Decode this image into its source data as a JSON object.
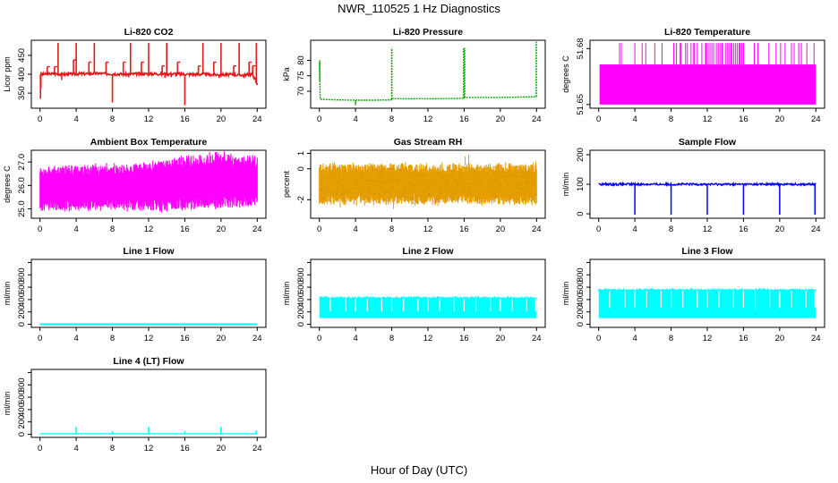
{
  "page": {
    "title": "NWR_110525  1 Hz Diagnostics",
    "xlabel": "Hour of Day (UTC)"
  },
  "chart_data": [
    {
      "type": "line",
      "title": "Li-820 CO2",
      "ylabel": "Licor ppm",
      "xlim": [
        0,
        24
      ],
      "ylim": [
        310,
        490
      ],
      "xticks": [
        "0",
        "4",
        "8",
        "12",
        "16",
        "20",
        "24"
      ],
      "yticks": [
        {
          "v": 350,
          "l": "350"
        },
        {
          "v": 400,
          "l": "400"
        },
        {
          "v": 450,
          "l": "450"
        }
      ],
      "color": "#e41a1c",
      "series": [
        {
          "x": [
            0,
            0.3,
            0.6,
            1.2,
            2.0,
            2.7,
            4.0,
            5.3,
            6.0,
            6.7,
            8.0,
            9.3,
            10.0,
            10.7,
            12.0,
            13.3,
            14.0,
            14.7,
            16.0,
            17.3,
            18.0,
            18.7,
            20.0,
            21.3,
            22.0,
            22.7,
            23.5,
            24.0
          ],
          "y": [
            399,
            400,
            400,
            401,
            401,
            400,
            401,
            401,
            402,
            402,
            401,
            400,
            400,
            401,
            401,
            401,
            401,
            401,
            400,
            400,
            400,
            399,
            399,
            399,
            398,
            398,
            400,
            372
          ]
        }
      ],
      "spikes": [
        {
          "x": 0.05,
          "y": 335
        },
        {
          "x": 0.1,
          "y": 362
        },
        {
          "x": 0.8,
          "y": 420
        },
        {
          "x": 1.6,
          "y": 420
        },
        {
          "x": 2.0,
          "y": 483
        },
        {
          "x": 3.7,
          "y": 438
        },
        {
          "x": 4.0,
          "y": 483
        },
        {
          "x": 5.4,
          "y": 432
        },
        {
          "x": 6.0,
          "y": 483
        },
        {
          "x": 7.3,
          "y": 432
        },
        {
          "x": 8.0,
          "y": 325
        },
        {
          "x": 9.2,
          "y": 432
        },
        {
          "x": 10.0,
          "y": 483
        },
        {
          "x": 11.2,
          "y": 432
        },
        {
          "x": 12.0,
          "y": 483
        },
        {
          "x": 13.5,
          "y": 422
        },
        {
          "x": 14.0,
          "y": 483
        },
        {
          "x": 15.2,
          "y": 432
        },
        {
          "x": 16.0,
          "y": 318
        },
        {
          "x": 17.5,
          "y": 422
        },
        {
          "x": 18.0,
          "y": 483
        },
        {
          "x": 19.2,
          "y": 432
        },
        {
          "x": 20.0,
          "y": 483
        },
        {
          "x": 21.4,
          "y": 422
        },
        {
          "x": 22.0,
          "y": 483
        },
        {
          "x": 23.1,
          "y": 432
        },
        {
          "x": 23.5,
          "y": 422
        },
        {
          "x": 23.9,
          "y": 483
        },
        {
          "x": 23.95,
          "y": 372
        }
      ],
      "dips": [
        {
          "x": 2.4,
          "y": 385
        },
        {
          "x": 9.8,
          "y": 392
        },
        {
          "x": 13.8,
          "y": 390
        },
        {
          "x": 14.5,
          "y": 392
        },
        {
          "x": 19.8,
          "y": 390
        },
        {
          "x": 22.5,
          "y": 390
        }
      ]
    },
    {
      "type": "line",
      "title": "Li-820 Pressure",
      "ylabel": "kPa",
      "xlim": [
        0,
        24
      ],
      "ylim": [
        64.5,
        86.5
      ],
      "xticks": [
        "0",
        "4",
        "8",
        "12",
        "16",
        "20",
        "24"
      ],
      "yticks": [
        {
          "v": 70,
          "l": "70"
        },
        {
          "v": 75,
          "l": "75"
        },
        {
          "v": 80,
          "l": "80"
        }
      ],
      "color": "#00b200",
      "series": [
        {
          "x": [
            0,
            0.1,
            2,
            4,
            6,
            7.99,
            8.01,
            10,
            12,
            13,
            15.99,
            16.01,
            18,
            20,
            22,
            23.8,
            24
          ],
          "y": [
            79.5,
            67.4,
            67.2,
            67.1,
            67.1,
            67.2,
            67.6,
            67.6,
            67.6,
            67.6,
            67.7,
            68.0,
            68.0,
            68.0,
            68.1,
            68.2,
            68.2
          ]
        }
      ],
      "spikes": [
        {
          "x": 0.05,
          "y": 80
        },
        {
          "x": 8.0,
          "y": 84
        },
        {
          "x": 15.95,
          "y": 84
        },
        {
          "x": 16.05,
          "y": 84
        },
        {
          "x": 23.97,
          "y": 86
        }
      ],
      "dips": [
        {
          "x": 4.0,
          "y": 65.5
        }
      ]
    },
    {
      "type": "line",
      "title": "Li-820 Temperature",
      "ylabel": "degrees C",
      "xlim": [
        0,
        24
      ],
      "ylim": [
        51.648,
        51.6845
      ],
      "xticks": [
        "0",
        "4",
        "8",
        "12",
        "16",
        "20",
        "24"
      ],
      "yticks": [
        {
          "v": 51.65,
          "l": "51.65"
        },
        {
          "v": 51.68,
          "l": "51.68"
        }
      ],
      "color": "#ff00ff",
      "band": {
        "x0": 0.1,
        "x1": 24,
        "lo": 51.65,
        "hi": 51.6715
      },
      "spikes_top": 51.683,
      "spike_x": [
        2.3,
        2.5,
        4.0,
        4.8,
        5.2,
        6.2,
        7.0,
        8.3,
        8.6,
        9.0,
        9.1,
        9.6,
        9.8,
        10.2,
        10.5,
        10.6,
        10.9,
        11.4,
        11.8,
        11.9,
        12.1,
        12.3,
        12.5,
        12.7,
        13.0,
        13.2,
        13.4,
        13.6,
        13.7,
        14.0,
        14.2,
        14.4,
        14.6,
        14.7,
        14.9,
        15.1,
        15.3,
        15.5,
        15.6,
        15.8,
        16.0,
        17.2,
        17.6,
        18.8,
        19.6,
        20.1,
        20.6,
        21.3,
        21.6,
        22.1,
        22.4,
        23.0,
        23.8
      ]
    },
    {
      "type": "line",
      "title": "Ambient Box Temperature",
      "ylabel": "degrees C",
      "xlim": [
        0,
        24
      ],
      "ylim": [
        24.6,
        27.5
      ],
      "xticks": [
        "0",
        "4",
        "8",
        "12",
        "16",
        "20",
        "24"
      ],
      "yticks": [
        {
          "v": 25.0,
          "l": "25.0"
        },
        {
          "v": 26.0,
          "l": "26.0"
        },
        {
          "v": 27.0,
          "l": "27.0"
        }
      ],
      "color": "#ff00ff",
      "band_upper": {
        "x": [
          0,
          4,
          8,
          10,
          12,
          14,
          16,
          18,
          20,
          22,
          24
        ],
        "y": [
          26.7,
          26.8,
          26.85,
          26.8,
          27.0,
          27.05,
          27.15,
          27.25,
          27.35,
          27.25,
          27.2
        ]
      },
      "band_lower": {
        "x": [
          0,
          4,
          8,
          10,
          12,
          14,
          16,
          18,
          20,
          22,
          24
        ],
        "y": [
          25.0,
          25.0,
          25.05,
          25.0,
          25.0,
          25.0,
          25.05,
          25.1,
          25.15,
          25.1,
          25.2
        ]
      }
    },
    {
      "type": "line",
      "title": "Gas Stream RH",
      "ylabel": "percent",
      "xlim": [
        0,
        24
      ],
      "ylim": [
        -3.2,
        1.2
      ],
      "xticks": [
        "0",
        "4",
        "8",
        "12",
        "16",
        "20",
        "24"
      ],
      "yticks": [
        {
          "v": -2,
          "l": "-2"
        },
        {
          "v": 0,
          "l": "0"
        },
        {
          "v": 1,
          "l": "1"
        }
      ],
      "color": "#e69f00",
      "band_upper": {
        "x": [
          0,
          24
        ],
        "y": [
          0.25,
          0.25
        ]
      },
      "band_lower": {
        "x": [
          0,
          24
        ],
        "y": [
          -2.2,
          -2.2
        ]
      }
    },
    {
      "type": "line",
      "title": "Sample Flow",
      "ylabel": "ml/min",
      "xlim": [
        0,
        24
      ],
      "ylim": [
        -15,
        215
      ],
      "xticks": [
        "0",
        "4",
        "8",
        "12",
        "16",
        "20",
        "24"
      ],
      "yticks": [
        {
          "v": 0,
          "l": "0"
        },
        {
          "v": 100,
          "l": "100"
        },
        {
          "v": 200,
          "l": "200"
        }
      ],
      "color": "#0000ff",
      "series": [
        {
          "x": [
            0,
            4,
            8,
            12,
            16,
            20,
            24
          ],
          "y": [
            100,
            100,
            100,
            100,
            100,
            100,
            100
          ]
        }
      ],
      "dips": [
        {
          "x": 4.0,
          "y": -3
        },
        {
          "x": 8.0,
          "y": -3
        },
        {
          "x": 12.0,
          "y": -3
        },
        {
          "x": 16.0,
          "y": -3
        },
        {
          "x": 20.0,
          "y": -3
        },
        {
          "x": 23.9,
          "y": -3
        }
      ]
    },
    {
      "type": "line",
      "title": "Line 1 Flow",
      "ylabel": "ml/min",
      "xlim": [
        0,
        24
      ],
      "ylim": [
        -50,
        1050
      ],
      "xticks": [
        "0",
        "4",
        "8",
        "12",
        "16",
        "20",
        "24"
      ],
      "yticks": [
        {
          "v": 0,
          "l": "0"
        },
        {
          "v": 200,
          "l": "200"
        },
        {
          "v": 400,
          "l": "400"
        },
        {
          "v": 600,
          "l": "600"
        },
        {
          "v": 800,
          "l": "800"
        },
        {
          "v": 1000,
          "l": ""
        }
      ],
      "color": "#00ffff",
      "series": [
        {
          "x": [
            0,
            24
          ],
          "y": [
            0,
            0
          ]
        }
      ]
    },
    {
      "type": "line",
      "title": "Line 2 Flow",
      "ylabel": "ml/min",
      "xlim": [
        0,
        24
      ],
      "ylim": [
        -50,
        1050
      ],
      "xticks": [
        "0",
        "4",
        "8",
        "12",
        "16",
        "20",
        "24"
      ],
      "yticks": [
        {
          "v": 0,
          "l": "0"
        },
        {
          "v": 200,
          "l": "200"
        },
        {
          "v": 400,
          "l": "400"
        },
        {
          "v": 600,
          "l": "600"
        },
        {
          "v": 800,
          "l": "800"
        },
        {
          "v": 1000,
          "l": ""
        }
      ],
      "color": "#00ffff",
      "band": {
        "x0": 0,
        "x1": 24,
        "lo": 100,
        "hi": 430
      },
      "gaps": [
        1.2,
        2.9,
        4.0,
        5.3,
        6.9,
        8.0,
        9.3,
        10.9,
        12.0,
        13.3,
        14.9,
        16.0,
        17.3,
        18.9,
        20.0,
        21.3,
        22.9,
        23.9
      ]
    },
    {
      "type": "line",
      "title": "Line 3 Flow",
      "ylabel": "ml/min",
      "xlim": [
        0,
        24
      ],
      "ylim": [
        -50,
        1050
      ],
      "xticks": [
        "0",
        "4",
        "8",
        "12",
        "16",
        "20",
        "24"
      ],
      "yticks": [
        {
          "v": 0,
          "l": "0"
        },
        {
          "v": 200,
          "l": "200"
        },
        {
          "v": 400,
          "l": "400"
        },
        {
          "v": 600,
          "l": "600"
        },
        {
          "v": 800,
          "l": "800"
        },
        {
          "v": 1000,
          "l": ""
        }
      ],
      "color": "#00ffff",
      "band": {
        "x0": 0,
        "x1": 24,
        "lo": 100,
        "hi": 560
      },
      "gaps": [
        1.2,
        2.9,
        4.0,
        5.3,
        6.9,
        8.0,
        9.3,
        10.9,
        12.0,
        13.3,
        14.9,
        16.0,
        17.3,
        18.9,
        20.0,
        21.3,
        22.9,
        23.9
      ]
    },
    {
      "type": "line",
      "title": "Line 4 (LT) Flow",
      "ylabel": "ml/min",
      "xlim": [
        0,
        24
      ],
      "ylim": [
        -50,
        1050
      ],
      "xticks": [
        "0",
        "4",
        "8",
        "12",
        "16",
        "20",
        "24"
      ],
      "yticks": [
        {
          "v": 0,
          "l": "0"
        },
        {
          "v": 200,
          "l": "200"
        },
        {
          "v": 400,
          "l": "400"
        },
        {
          "v": 600,
          "l": "600"
        },
        {
          "v": 800,
          "l": "800"
        },
        {
          "v": 1000,
          "l": ""
        }
      ],
      "color": "#00ffff",
      "series": [
        {
          "x": [
            0,
            24
          ],
          "y": [
            10,
            10
          ]
        }
      ],
      "spikes": [
        {
          "x": 4.0,
          "y": 120
        },
        {
          "x": 8.0,
          "y": 50
        },
        {
          "x": 12.0,
          "y": 120
        },
        {
          "x": 16.0,
          "y": 50
        },
        {
          "x": 20.0,
          "y": 120
        },
        {
          "x": 23.9,
          "y": 60
        }
      ]
    }
  ]
}
